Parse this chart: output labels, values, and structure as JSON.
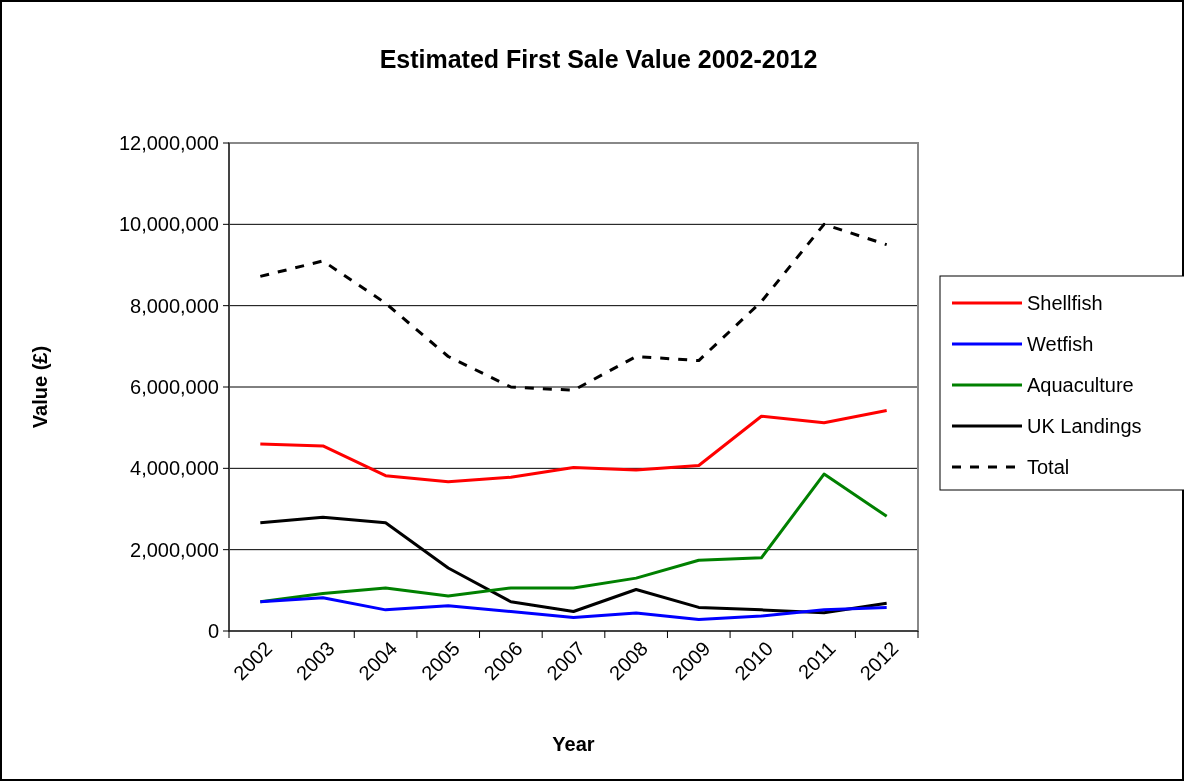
{
  "chart_data": {
    "type": "line",
    "title": "Estimated First Sale Value 2002-2012",
    "xlabel": "Year",
    "ylabel": "Value (£)",
    "categories": [
      "2002",
      "2003",
      "2004",
      "2005",
      "2006",
      "2007",
      "2008",
      "2009",
      "2010",
      "2011",
      "2012"
    ],
    "series": [
      {
        "name": "Shellfish",
        "color": "#ff0000",
        "values": [
          4600000,
          4550000,
          3820000,
          3670000,
          3780000,
          4020000,
          3960000,
          4070000,
          5280000,
          5120000,
          5420000
        ]
      },
      {
        "name": "Wetfish",
        "color": "#0000ff",
        "values": [
          720000,
          820000,
          520000,
          620000,
          480000,
          330000,
          440000,
          280000,
          370000,
          520000,
          580000
        ]
      },
      {
        "name": "Aquaculture",
        "color": "#008000",
        "values": [
          720000,
          920000,
          1060000,
          860000,
          1060000,
          1060000,
          1300000,
          1740000,
          1800000,
          3860000,
          2820000
        ]
      },
      {
        "name": "UK Landings",
        "color": "#000000",
        "values": [
          2660000,
          2800000,
          2660000,
          1550000,
          720000,
          480000,
          1020000,
          580000,
          520000,
          450000,
          680000
        ]
      },
      {
        "name": "Total",
        "color": "#000000",
        "line_style": "dashed",
        "values": [
          8720000,
          9100000,
          8060000,
          6750000,
          6000000,
          5920000,
          6750000,
          6650000,
          8100000,
          10000000,
          9500000
        ]
      }
    ],
    "ylim": [
      0,
      12000000
    ],
    "yticks": [
      {
        "value": 0,
        "label": "0"
      },
      {
        "value": 2000000,
        "label": "2,000,000"
      },
      {
        "value": 4000000,
        "label": "4,000,000"
      },
      {
        "value": 6000000,
        "label": "6,000,000"
      },
      {
        "value": 8000000,
        "label": "8,000,000"
      },
      {
        "value": 10000000,
        "label": "10,000,000"
      },
      {
        "value": 12000000,
        "label": "12,000,000"
      }
    ],
    "grid": "y",
    "legend": "right",
    "marker": "none",
    "line_style": "solid"
  }
}
